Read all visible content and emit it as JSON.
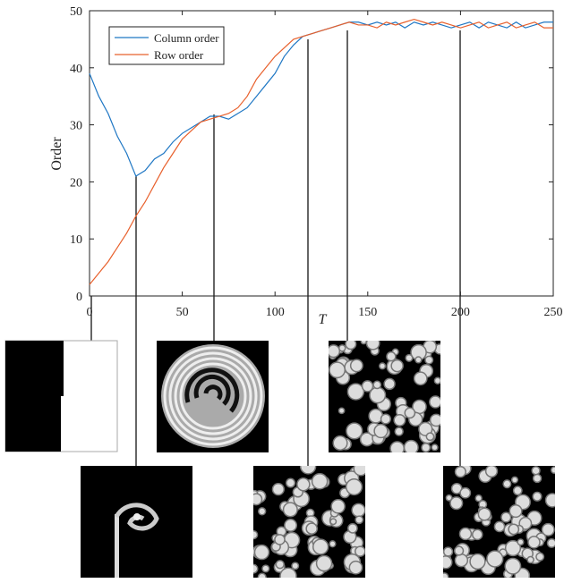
{
  "chart_data": {
    "type": "line",
    "x_label": "T",
    "y_label": "Order",
    "x": [
      0,
      5,
      10,
      15,
      20,
      25,
      30,
      35,
      40,
      45,
      50,
      55,
      60,
      65,
      70,
      75,
      80,
      85,
      90,
      95,
      100,
      105,
      110,
      115,
      120,
      125,
      130,
      135,
      140,
      145,
      150,
      155,
      160,
      165,
      170,
      175,
      180,
      185,
      190,
      195,
      200,
      205,
      210,
      215,
      220,
      225,
      230,
      235,
      240,
      245,
      250
    ],
    "series": [
      {
        "name": "Column order",
        "color": "#1f77c4",
        "values": [
          39,
          35,
          32,
          28,
          25,
          21,
          22,
          24,
          25,
          27,
          28.5,
          29.5,
          30.5,
          31.5,
          31.5,
          31,
          32,
          33,
          35,
          37,
          39,
          42,
          44,
          45.5,
          46,
          46.5,
          47,
          47.5,
          48,
          48,
          47.5,
          48,
          47.5,
          48,
          47,
          48,
          47.5,
          48,
          47.5,
          47,
          47.5,
          48,
          47,
          48,
          47.5,
          47,
          48,
          47,
          47.5,
          48,
          48
        ]
      },
      {
        "name": "Row order",
        "color": "#e8602c",
        "values": [
          2,
          4,
          6,
          8.5,
          11,
          14,
          16.5,
          19.5,
          22.5,
          25,
          27.5,
          29,
          30.5,
          31,
          31.5,
          32,
          33,
          35,
          38,
          40,
          42,
          43.5,
          45,
          45.5,
          46,
          46.5,
          47,
          47.5,
          48,
          47.5,
          47.5,
          47,
          48,
          47.5,
          48,
          48.5,
          48,
          47.5,
          48,
          47.5,
          47,
          47.5,
          48,
          47,
          47.5,
          48,
          47,
          47.5,
          48,
          47,
          47
        ]
      }
    ],
    "xlim": [
      0,
      250
    ],
    "xticks": [
      0,
      50,
      100,
      150,
      200,
      250
    ],
    "ylim": [
      0,
      50
    ],
    "yticks": [
      0,
      10,
      20,
      30,
      40,
      50
    ],
    "legend": "upper left"
  }
}
